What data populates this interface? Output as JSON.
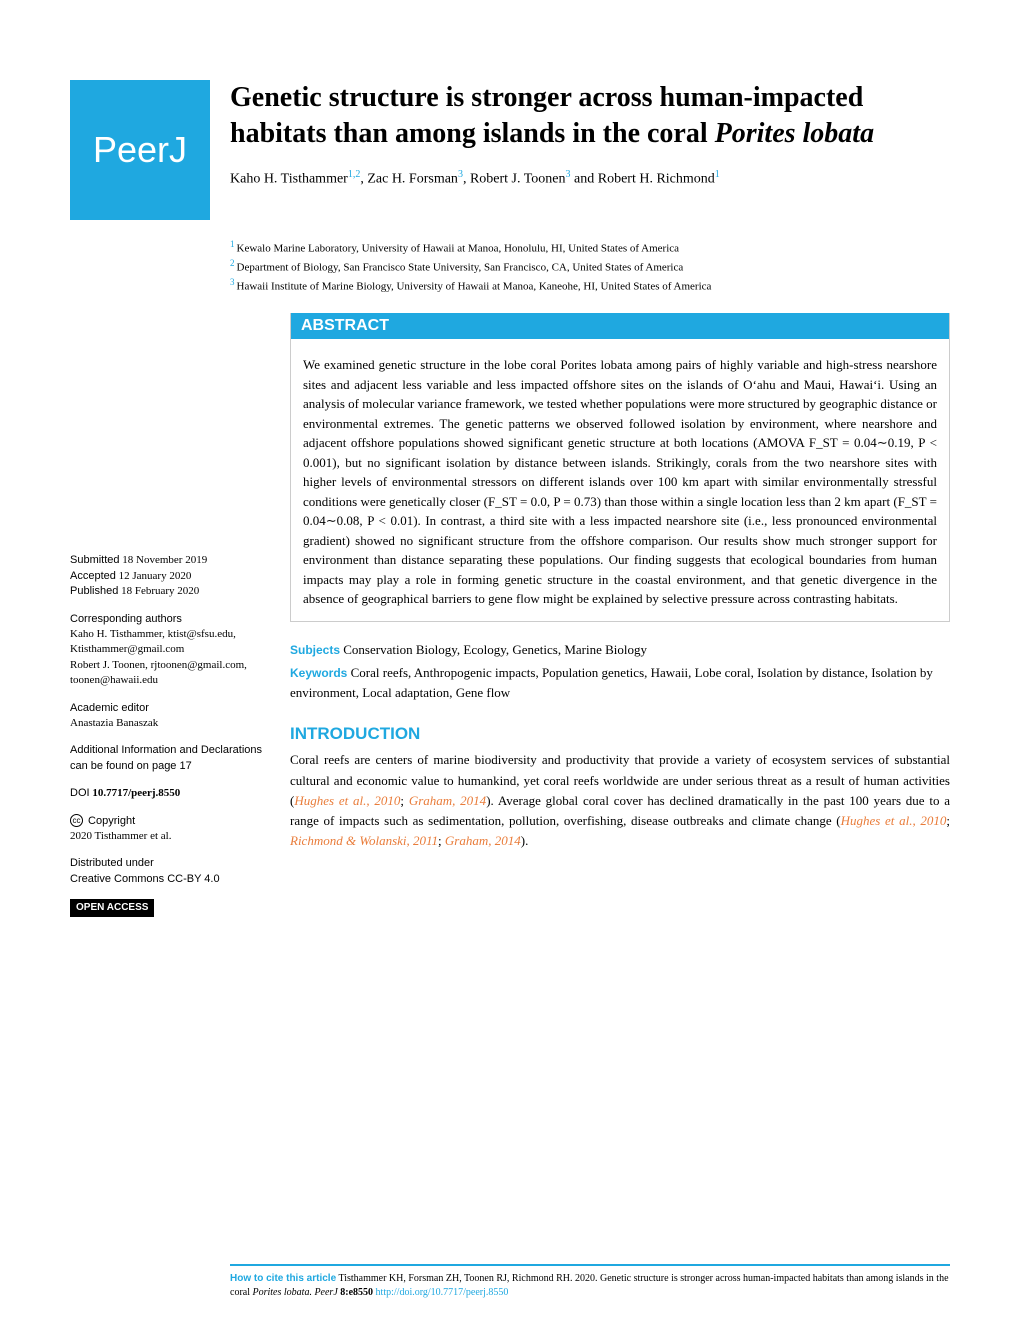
{
  "journal": {
    "logo_text": "PeerJ",
    "brand_color": "#1fa8e0",
    "citation_link_color": "#e97c3a"
  },
  "article": {
    "title_part1": "Genetic structure is stronger across human-impacted habitats than among islands in the coral ",
    "title_italic": "Porites lobata",
    "authors_line1": "Kaho H. Tisthammer",
    "auth1_sup": "1,2",
    "authors_line2": ",  Zac H. Forsman",
    "auth2_sup": "3",
    "authors_line3": ",  Robert J. Toonen",
    "auth3_sup": "3",
    "authors_line4": " and Robert H. Richmond",
    "auth4_sup": "1",
    "affiliations": [
      {
        "num": "1",
        "text": "Kewalo Marine Laboratory, University of Hawaii at Manoa, Honolulu, HI, United States of America"
      },
      {
        "num": "2",
        "text": "Department of Biology, San Francisco State University, San Francisco, CA, United States of America"
      },
      {
        "num": "3",
        "text": "Hawaii Institute of Marine Biology, University of Hawaii at Manoa, Kaneohe, HI, United States of America"
      }
    ]
  },
  "abstract": {
    "header": "ABSTRACT",
    "text": "We examined genetic structure in the lobe coral Porites lobata among pairs of highly variable and high-stress nearshore sites and adjacent less variable and less impacted offshore sites on the islands of Oʻahu and Maui, Hawaiʻi. Using an analysis of molecular variance framework, we tested whether populations were more structured by geographic distance or environmental extremes. The genetic patterns we observed followed isolation by environment, where nearshore and adjacent offshore populations showed significant genetic structure at both locations (AMOVA F_ST = 0.04∼0.19, P < 0.001), but no significant isolation by distance between islands. Strikingly, corals from the two nearshore sites with higher levels of environmental stressors on different islands over 100 km apart with similar environmentally stressful conditions were genetically closer (F_ST = 0.0, P = 0.73) than those within a single location less than 2 km apart (F_ST = 0.04∼0.08, P < 0.01). In contrast, a third site with a less impacted nearshore site (i.e., less pronounced environmental gradient) showed no significant structure from the offshore comparison. Our results show much stronger support for environment than distance separating these populations. Our finding suggests that ecological boundaries from human impacts may play a role in forming genetic structure in the coastal environment, and that genetic divergence in the absence of geographical barriers to gene flow might be explained by selective pressure across contrasting habitats."
  },
  "subjects": {
    "label": "Subjects",
    "text": " Conservation Biology, Ecology, Genetics, Marine Biology"
  },
  "keywords": {
    "label": "Keywords",
    "text": " Coral reefs, Anthropogenic impacts, Population genetics, Hawaii, Lobe coral, Isolation by distance, Isolation by environment, Local adaptation, Gene flow"
  },
  "introduction": {
    "header": "INTRODUCTION",
    "text_pre": "Coral reefs are centers of marine biodiversity and productivity that provide a variety of ecosystem services of substantial cultural and economic value to humankind, yet coral reefs worldwide are under serious threat as a result of human activities (",
    "cite1": "Hughes et al., 2010",
    "sep1": "; ",
    "cite2": "Graham, 2014",
    "text_mid": "). Average global coral cover has declined dramatically in the past 100 years due to a range of impacts such as sedimentation, pollution, overfishing, disease outbreaks and climate change (",
    "cite3": "Hughes et al., 2010",
    "sep2": "; ",
    "cite4": "Richmond & Wolanski, 2011",
    "sep3": "; ",
    "cite5": "Graham, 2014",
    "text_end": ")."
  },
  "sidebar": {
    "submitted_label": "Submitted",
    "submitted_date": " 18 November 2019",
    "accepted_label": "Accepted",
    "accepted_date": " 12 January 2020",
    "published_label": "Published",
    "published_date": " 18 February 2020",
    "corresponding_label": "Corresponding authors",
    "corresponding_text": "Kaho H. Tisthammer, ktist@sfsu.edu, Ktisthammer@gmail.com\nRobert J. Toonen, rjtoonen@gmail.com, toonen@hawaii.edu",
    "editor_label": "Academic editor",
    "editor_name": "Anastazia Banaszak",
    "additional_label": "Additional Information and Declarations can be found on page 17",
    "doi_label": "DOI",
    "doi_value": " 10.7717/peerj.8550",
    "copyright_label": " Copyright",
    "copyright_text": "2020 Tisthammer et al.",
    "distributed_label": "Distributed under",
    "distributed_text": "Creative Commons CC-BY 4.0",
    "open_access": "OPEN ACCESS"
  },
  "footer": {
    "howto": "How to cite this article",
    "citation_text": " Tisthammer KH, Forsman ZH, Toonen RJ, Richmond RH. 2020. Genetic structure is stronger across human-impacted habitats than among islands in the coral ",
    "citation_italic": "Porites lobata. PeerJ",
    "citation_vol": " 8:e8550 ",
    "doi_url": "http://doi.org/10.7717/peerj.8550"
  }
}
